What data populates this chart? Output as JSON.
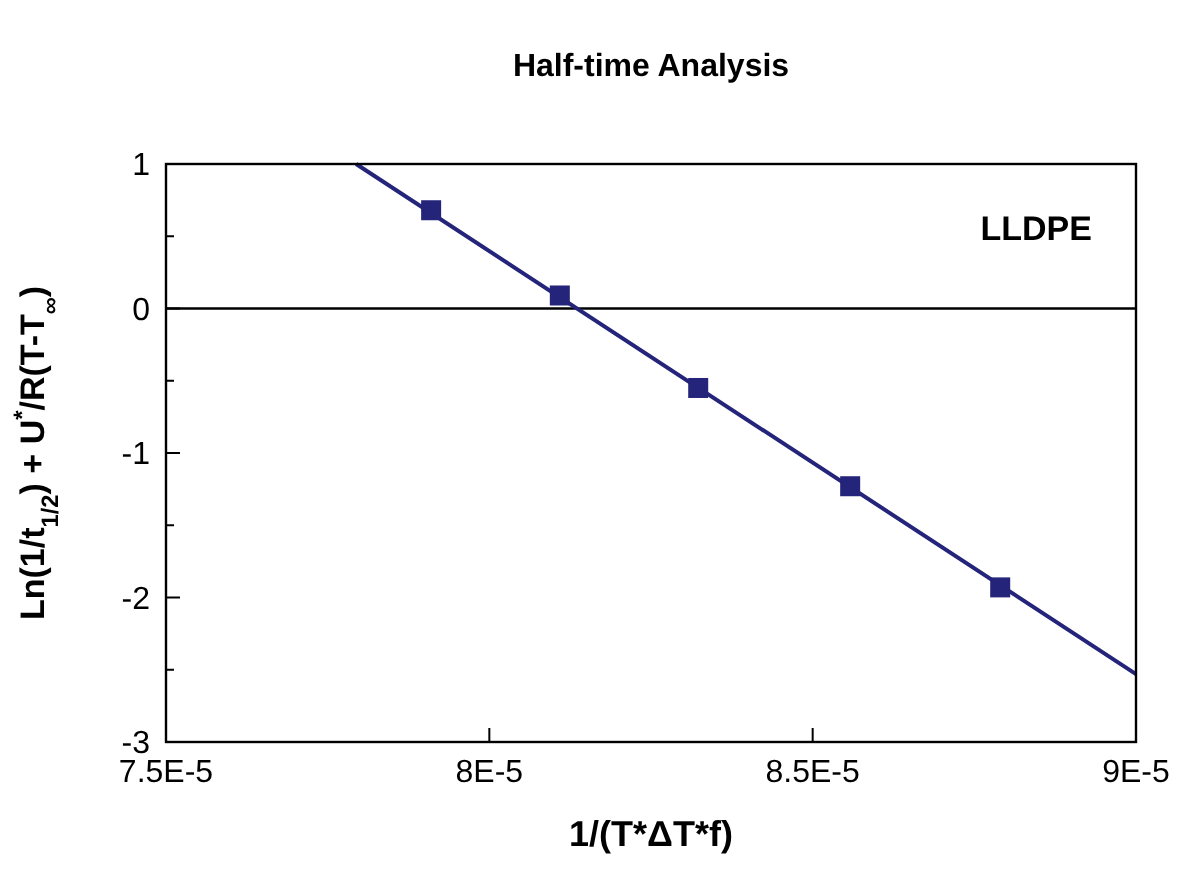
{
  "chart_data": {
    "type": "scatter",
    "title": "Half-time Analysis",
    "xlabel": "1/(T*ΔT*f)",
    "ylabel": "Ln(1/t$_{1/2}$) + U$^{*}$/R(T-T$_{∞}$)",
    "x": [
      7.91e-05,
      8.109e-05,
      8.323e-05,
      8.558e-05,
      8.79e-05
    ],
    "series": [
      {
        "color": "#24247a",
        "marker": "square",
        "values": [
          0.68,
          0.09,
          -0.55,
          -1.23,
          -1.93
        ]
      },
      {
        "type": "line",
        "color": "#24247a",
        "marker": "none",
        "x": [
          7.794e-05,
          9e-05
        ],
        "values": [
          1,
          -2.53
        ]
      }
    ],
    "xlim": [
      7.5e-05,
      9e-05
    ],
    "xticks": [
      {
        "value": 7.5e-05,
        "label": "7.5E-5"
      },
      {
        "value": 8e-05,
        "label": "8E-5"
      },
      {
        "value": 8.5e-05,
        "label": "8.5E-5"
      },
      {
        "value": 9e-05,
        "label": "9E-5"
      }
    ],
    "ylim": [
      -3,
      1
    ],
    "yticks": [
      -3,
      {
        "value": -2.5,
        "label": null
      },
      -2,
      {
        "value": -1.5,
        "label": null
      },
      -1,
      {
        "value": -0.5,
        "label": null
      },
      0,
      {
        "value": 0.5,
        "label": null
      },
      1
    ],
    "ref_lines": [
      {
        "axis": "y",
        "value": 0,
        "color": "#000000"
      }
    ],
    "annotations": [
      "LLDPE"
    ],
    "grid": false
  }
}
